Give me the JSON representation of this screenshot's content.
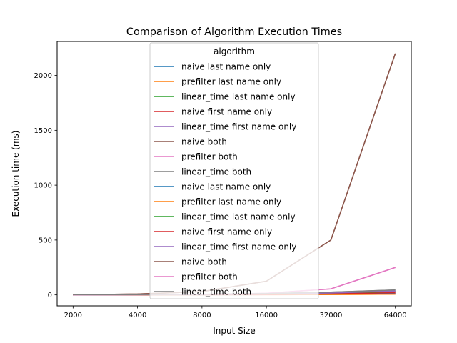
{
  "chart_data": {
    "type": "line",
    "title": "Comparison of Algorithm Execution Times",
    "xlabel": "Input Size",
    "ylabel": "Execution time (ms)",
    "x": [
      2000,
      4000,
      8000,
      16000,
      32000,
      64000
    ],
    "x_scale": "log2",
    "x_tick_labels": [
      "2000",
      "4000",
      "8000",
      "16000",
      "32000",
      "64000"
    ],
    "y_ticks": [
      0,
      500,
      1000,
      1500,
      2000
    ],
    "y_tick_labels": [
      "0",
      "500",
      "1000",
      "1500",
      "2000"
    ],
    "xlim": [
      2000,
      64000
    ],
    "ylim": [
      -100,
      2310
    ],
    "grid": false,
    "legend": {
      "title": "algorithm",
      "placement": "top-center"
    },
    "series": [
      {
        "name": "naive last name only",
        "color": "#1f77b4",
        "values": [
          0.3,
          0.6,
          1.2,
          2.5,
          5,
          10
        ]
      },
      {
        "name": "prefilter last name only",
        "color": "#ff7f0e",
        "values": [
          0.2,
          0.4,
          0.8,
          1.6,
          3.5,
          7
        ]
      },
      {
        "name": "linear_time last name only",
        "color": "#2ca02c",
        "values": [
          0.8,
          1.6,
          3.2,
          6.5,
          14,
          30
        ]
      },
      {
        "name": "naive first name only",
        "color": "#d62728",
        "values": [
          0.5,
          1,
          2,
          4,
          9,
          20
        ]
      },
      {
        "name": "linear_time first name only",
        "color": "#9467bd",
        "values": [
          1,
          2,
          4,
          8,
          17,
          35
        ]
      },
      {
        "name": "naive both",
        "color": "#8c564b",
        "values": [
          2,
          8,
          30,
          125,
          500,
          2200
        ]
      },
      {
        "name": "prefilter both",
        "color": "#e377c2",
        "values": [
          0.5,
          2,
          4,
          15,
          55,
          250
        ]
      },
      {
        "name": "linear_time both",
        "color": "#7f7f7f",
        "values": [
          1.5,
          3,
          6,
          12,
          25,
          45
        ]
      },
      {
        "name": "naive last name only",
        "color": "#1f77b4",
        "values": [
          0.3,
          0.6,
          1.2,
          2.5,
          5,
          10
        ]
      },
      {
        "name": "prefilter last name only",
        "color": "#ff7f0e",
        "values": [
          0.2,
          0.4,
          0.8,
          1.6,
          3.5,
          7
        ]
      },
      {
        "name": "linear_time last name only",
        "color": "#2ca02c",
        "values": [
          0.8,
          1.6,
          3.2,
          6.5,
          14,
          30
        ]
      },
      {
        "name": "naive first name only",
        "color": "#d62728",
        "values": [
          0.5,
          1,
          2,
          4,
          9,
          20
        ]
      },
      {
        "name": "linear_time first name only",
        "color": "#9467bd",
        "values": [
          1,
          2,
          4,
          8,
          17,
          35
        ]
      },
      {
        "name": "naive both",
        "color": "#8c564b",
        "values": [
          2,
          8,
          30,
          125,
          500,
          2200
        ]
      },
      {
        "name": "prefilter both",
        "color": "#e377c2",
        "values": [
          0.5,
          2,
          4,
          15,
          55,
          250
        ]
      },
      {
        "name": "linear_time both",
        "color": "#7f7f7f",
        "values": [
          1.5,
          3,
          6,
          12,
          25,
          45
        ]
      }
    ]
  }
}
